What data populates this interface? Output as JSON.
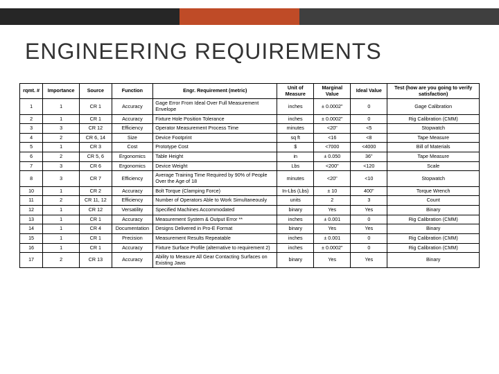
{
  "colors": {
    "bar_dark": "#262626",
    "bar_orange": "#bf4b27",
    "bar_gray": "#3f3f3f",
    "bg": "#ffffff",
    "text": "#333333",
    "border": "#000000"
  },
  "topbar_widths_pct": [
    36,
    24,
    40
  ],
  "title": "ENGINEERING REQUIREMENTS",
  "table": {
    "headers": [
      "rqmt. #",
      "Importance",
      "Source",
      "Function",
      "Engr. Requirement (metric)",
      "Unit of Measure",
      "Marginal Value",
      "Ideal Value",
      "Test (how are you going to verify satisfaction)"
    ],
    "col_align": [
      "center",
      "center",
      "center",
      "center",
      "left",
      "center",
      "center",
      "center",
      "center"
    ],
    "rows": [
      [
        "1",
        "1",
        "CR 1",
        "Accuracy",
        "Gage Error From Ideal Over Full Measurement Envelope",
        "inches",
        "± 0.0002\"",
        "0",
        "Gage Calibration"
      ],
      [
        "2",
        "1",
        "CR 1",
        "Accuracy",
        "Fixture Hole Position Tolerance",
        "inches",
        "± 0.0002\"",
        "0",
        "Rig Calibration (CMM)"
      ],
      [
        "3",
        "3",
        "CR 12",
        "Efficiency",
        "Operator Measurement Process Time",
        "minutes",
        "<20\"",
        "<5",
        "Stopwatch"
      ],
      [
        "4",
        "2",
        "CR 6, 14",
        "Size",
        "Device Footprint",
        "sq ft",
        "<16",
        "<8",
        "Tape Measure"
      ],
      [
        "5",
        "1",
        "CR 3",
        "Cost",
        "Prototype Cost",
        "$",
        "<7000",
        "<4000",
        "Bill of Materials"
      ],
      [
        "6",
        "2",
        "CR 5, 6",
        "Ergonomics",
        "Table Height",
        "in",
        "± 0.050",
        "36\"",
        "Tape Measure"
      ],
      [
        "7",
        "3",
        "CR 6",
        "Ergonomics",
        "Device Weight",
        "Lbs",
        "<200\"",
        "<120",
        "Scale"
      ],
      [
        "8",
        "3",
        "CR 7",
        "Efficiency",
        "Average Training Time Required by 90% of People Over the Age of 18",
        "minutes",
        "<20\"",
        "<10",
        "Stopwatch"
      ],
      [
        "10",
        "1",
        "CR 2",
        "Accuracy",
        "Bolt Torque (Clamping Force)",
        "In-Lbs (Lbs)",
        "± 10",
        "400\"",
        "Torque Wrench"
      ],
      [
        "11",
        "2",
        "CR 11, 12",
        "Efficiency",
        "Number of Operators Able to Work Simultaneously",
        "units",
        "2",
        "3",
        "Count"
      ],
      [
        "12",
        "1",
        "CR 12",
        "Versatility",
        "Specified Machines Accommodated",
        "binary",
        "Yes",
        "Yes",
        "Binary"
      ],
      [
        "13",
        "1",
        "CR 1",
        "Accuracy",
        "Measurement System & Output Error **",
        "inches",
        "± 0.001",
        "0",
        "Rig Calibration (CMM)"
      ],
      [
        "14",
        "1",
        "CR 4",
        "Documentation",
        "Designs Delivered in Pro-E Format",
        "binary",
        "Yes",
        "Yes",
        "Binary"
      ],
      [
        "15",
        "1",
        "CR 1",
        "Precision",
        "Measurement Results Repeatable",
        "inches",
        "± 0.001",
        "0",
        "Rig Calibration (CMM)"
      ],
      [
        "16",
        "1",
        "CR 1",
        "Accuracy",
        "Fixture Surface Profile (alternative to requirement 2)",
        "inches",
        "± 0.0002\"",
        "0",
        "Rig Calibration (CMM)"
      ],
      [
        "17",
        "2",
        "CR 13",
        "Accuracy",
        "Ability to Measure All Gear Contacting Surfaces on Existing Jaws",
        "binary",
        "Yes",
        "Yes",
        "Binary"
      ]
    ]
  }
}
